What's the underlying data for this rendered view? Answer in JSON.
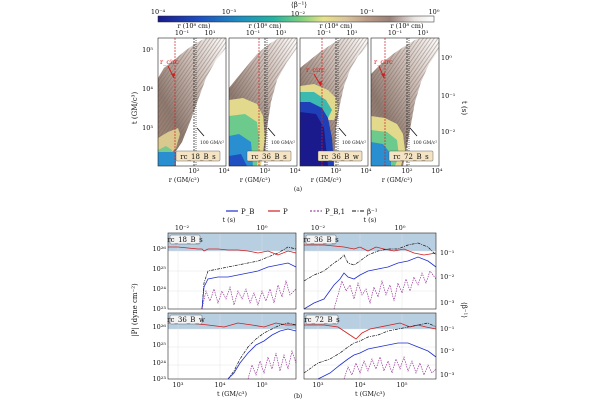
{
  "figure_a": {
    "colorbar": {
      "title": "⟨β⁻¹⟩",
      "ticks": [
        "10⁻⁴",
        "10⁻³",
        "10⁻²",
        "10⁻¹",
        "10⁰"
      ],
      "colors": [
        "#1a1a8c",
        "#1f4fc0",
        "#1f8fbf",
        "#27b3a0",
        "#7fd080",
        "#e8e28a",
        "#d9c59d",
        "#b89a86",
        "#9a8279",
        "#e9e4e1",
        "#ffffff"
      ]
    },
    "top_axis_label": "r (10⁸ cm)",
    "top_ticks": [
      "10⁻¹",
      "10¹"
    ],
    "left_axis_label": "t (GM/c³)",
    "left_ticks": [
      "10⁵",
      "10⁴",
      "10³"
    ],
    "right_axis_label": "t (s)",
    "right_ticks": [
      "10⁰",
      "10⁻¹",
      "10⁻²"
    ],
    "bottom_axis_label": "r (GM/c²)",
    "bottom_ticks": [
      "10²",
      "10⁴"
    ],
    "panels": [
      {
        "tag": "rc_18_B_s",
        "rcirc_label": "r_circ",
        "line_label": "100 GM/c²"
      },
      {
        "tag": "rc_36_B_s",
        "rcirc_label": "",
        "line_label": "100 GM/c²"
      },
      {
        "tag": "rc_36_B_w",
        "rcirc_label": "r_circ",
        "line_label": "100 GM/c²"
      },
      {
        "tag": "rc_72_B_s",
        "rcirc_label": "r_circ",
        "line_label": "100 GM/c²"
      }
    ],
    "caption": "(a)"
  },
  "figure_b": {
    "legend": [
      "P_B",
      "P",
      "P_B,1",
      "β⁻¹"
    ],
    "legend_colors": [
      "#1f2fd0",
      "#d01f1f",
      "#8a1a8a",
      "#111111"
    ],
    "top_axis_label": "t (s)",
    "top_ticks": [
      "10⁻²",
      "10⁰"
    ],
    "left_axis_label": "|P| (dyne cm⁻²)",
    "left_ticks": [
      "10²⁶",
      "10²⁵",
      "10²⁴",
      "10²³"
    ],
    "right_axis_label": "⟨β⁻¹⟩",
    "right_ticks": [
      "10⁻¹",
      "10⁻²",
      "10⁻³"
    ],
    "bottom_axis_label": "t (GM/c³)",
    "bottom_ticks": [
      "10³",
      "10⁴",
      "10⁵"
    ],
    "panels": [
      {
        "tag": "rc_18_B_s"
      },
      {
        "tag": "rc_36_B_s"
      },
      {
        "tag": "rc_36_B_w"
      },
      {
        "tag": "rc_72_B_s"
      }
    ],
    "caption": "(b)"
  }
}
